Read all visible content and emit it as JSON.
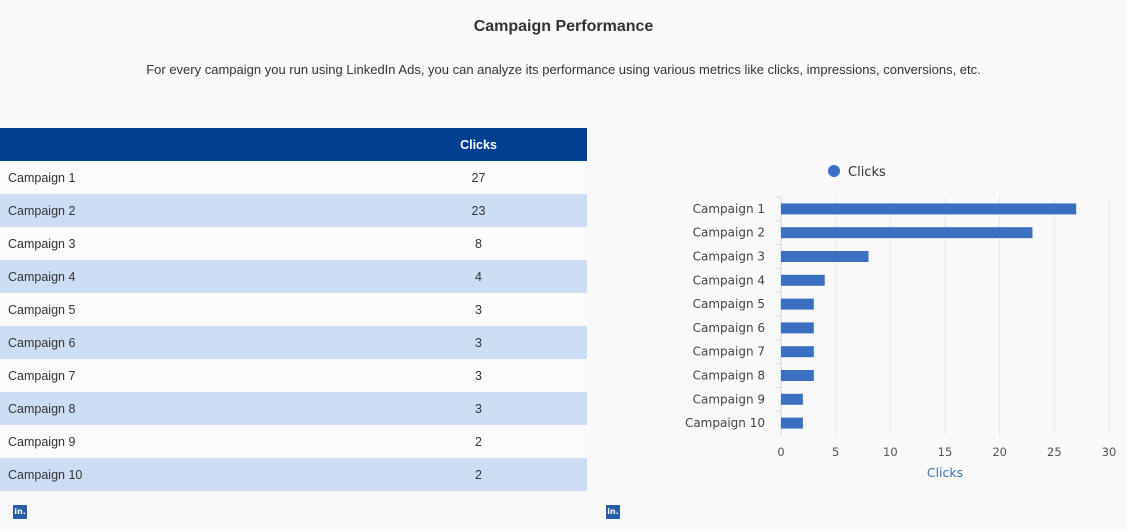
{
  "header": {
    "title": "Campaign Performance",
    "subtitle": "For every campaign you run using LinkedIn Ads, you can analyze its performance using various metrics like clicks, impressions, conversions, etc."
  },
  "table": {
    "columns": [
      "",
      "Clicks"
    ],
    "rows": [
      {
        "name": "Campaign 1",
        "clicks": "27"
      },
      {
        "name": "Campaign 2",
        "clicks": "23"
      },
      {
        "name": "Campaign 3",
        "clicks": "8"
      },
      {
        "name": "Campaign 4",
        "clicks": "4"
      },
      {
        "name": "Campaign 5",
        "clicks": "3"
      },
      {
        "name": "Campaign 6",
        "clicks": "3"
      },
      {
        "name": "Campaign 7",
        "clicks": "3"
      },
      {
        "name": "Campaign 8",
        "clicks": "3"
      },
      {
        "name": "Campaign 9",
        "clicks": "2"
      },
      {
        "name": "Campaign 10",
        "clicks": "2"
      }
    ]
  },
  "badges": {
    "label": "in."
  },
  "colors": {
    "header_bg": "#044092",
    "row_alt": "#cdddf4",
    "bar": "#3b6fc1",
    "axis_title": "#3b6fc1"
  },
  "chart_data": {
    "type": "bar",
    "orientation": "horizontal",
    "categories": [
      "Campaign 1",
      "Campaign 2",
      "Campaign 3",
      "Campaign 4",
      "Campaign 5",
      "Campaign 6",
      "Campaign 7",
      "Campaign 8",
      "Campaign 9",
      "Campaign 10"
    ],
    "series": [
      {
        "name": "Clicks",
        "values": [
          27,
          23,
          8,
          4,
          3,
          3,
          3,
          3,
          2,
          2
        ]
      }
    ],
    "xlabel": "Clicks",
    "ylabel": "",
    "xlim": [
      0,
      30
    ],
    "xticks": [
      0,
      5,
      10,
      15,
      20,
      25,
      30
    ],
    "grid": true,
    "legend": "top-center"
  }
}
